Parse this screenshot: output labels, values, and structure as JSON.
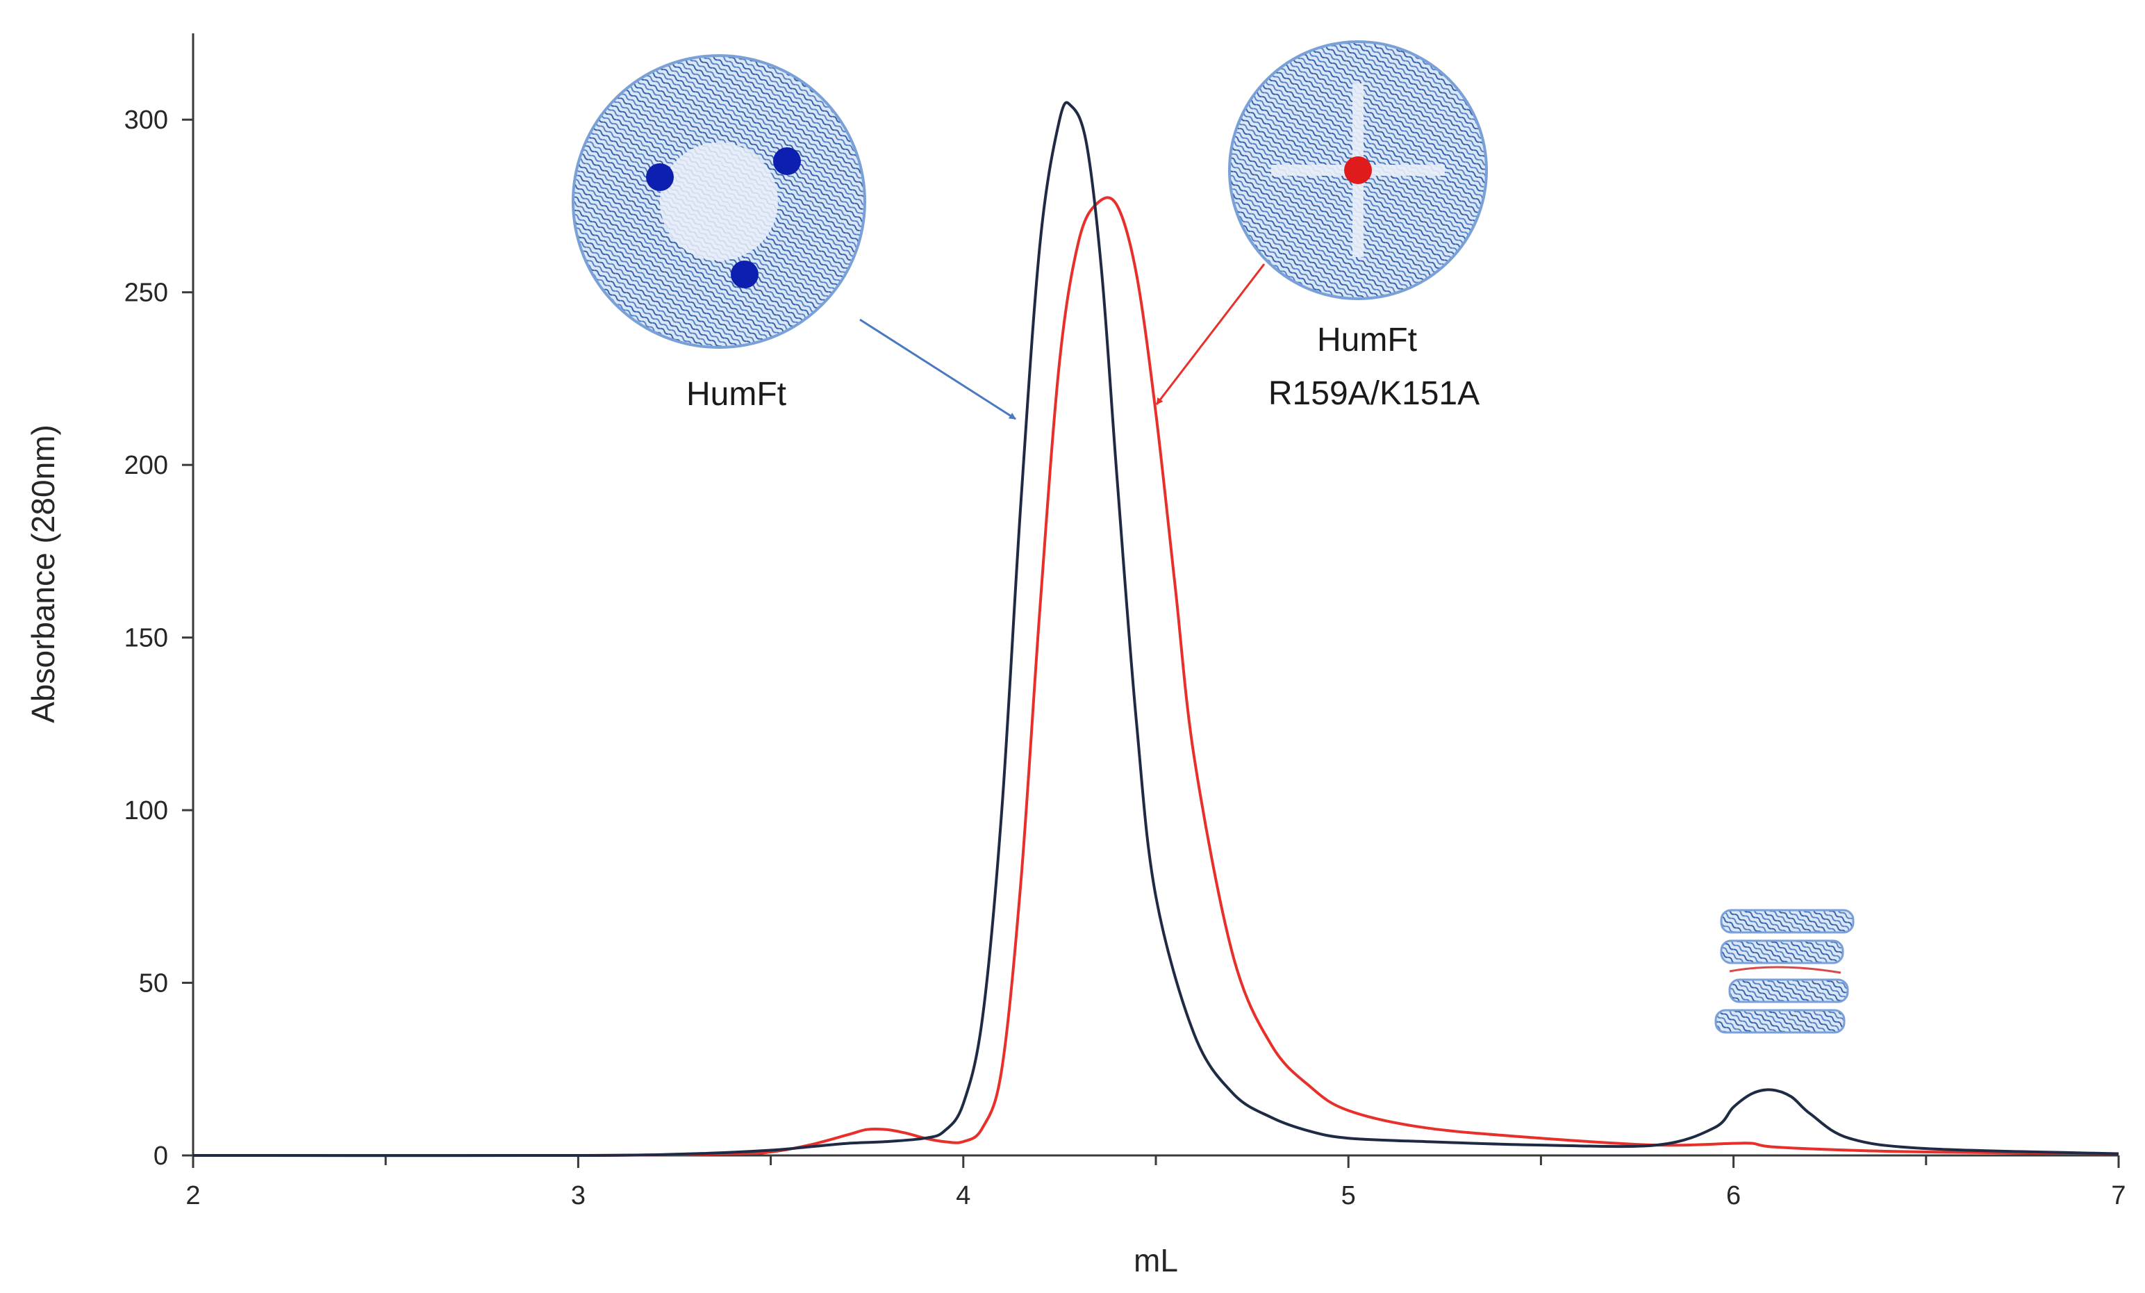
{
  "chart_data": {
    "type": "line",
    "title": "",
    "xlabel": "mL",
    "ylabel": "Absorbance (280nm)",
    "xlim": [
      2,
      7
    ],
    "ylim": [
      0,
      325
    ],
    "xticks": [
      2,
      3,
      4,
      5,
      6,
      7
    ],
    "yticks": [
      0,
      50,
      100,
      150,
      200,
      250,
      300
    ],
    "grid": false,
    "legend": "none",
    "series": [
      {
        "color": "#1f2a44",
        "x": [
          2.0,
          3.0,
          3.3,
          3.5,
          3.6,
          3.7,
          3.8,
          3.9,
          3.95,
          4.0,
          4.05,
          4.1,
          4.15,
          4.2,
          4.25,
          4.28,
          4.32,
          4.36,
          4.4,
          4.45,
          4.5,
          4.6,
          4.7,
          4.8,
          4.9,
          5.0,
          5.2,
          5.5,
          5.8,
          5.95,
          6.0,
          6.05,
          6.1,
          6.15,
          6.2,
          6.3,
          6.5,
          7.0
        ],
        "y": [
          0,
          0,
          0.5,
          1.5,
          2.5,
          3.5,
          4,
          5,
          7,
          15,
          40,
          100,
          190,
          265,
          300,
          304,
          293,
          255,
          195,
          125,
          75,
          35,
          18,
          11,
          7,
          5,
          4,
          3,
          3,
          8,
          14,
          18,
          19,
          17,
          12,
          5,
          2,
          0.5
        ]
      },
      {
        "color": "#e8302b",
        "x": [
          2.0,
          3.0,
          3.4,
          3.5,
          3.6,
          3.7,
          3.75,
          3.8,
          3.85,
          3.9,
          3.95,
          4.0,
          4.05,
          4.1,
          4.15,
          4.2,
          4.25,
          4.3,
          4.35,
          4.4,
          4.45,
          4.5,
          4.55,
          4.6,
          4.7,
          4.8,
          4.9,
          5.0,
          5.2,
          5.5,
          5.8,
          6.0,
          6.05,
          6.1,
          6.3,
          6.5,
          7.0
        ],
        "y": [
          0,
          0,
          0.5,
          1,
          3,
          6,
          7.5,
          7.5,
          6.5,
          5,
          4,
          4,
          8,
          25,
          80,
          160,
          230,
          265,
          276,
          275,
          255,
          215,
          165,
          115,
          58,
          32,
          20,
          13,
          8,
          5,
          3,
          3.5,
          3.5,
          2.5,
          1.5,
          1,
          0.5
        ]
      }
    ],
    "annotations": [
      {
        "text": [
          "HumFt"
        ],
        "color": "#5b85c7"
      },
      {
        "text": [
          "HumFt",
          "R159A/K151A"
        ],
        "color": "#e8302b"
      }
    ]
  }
}
